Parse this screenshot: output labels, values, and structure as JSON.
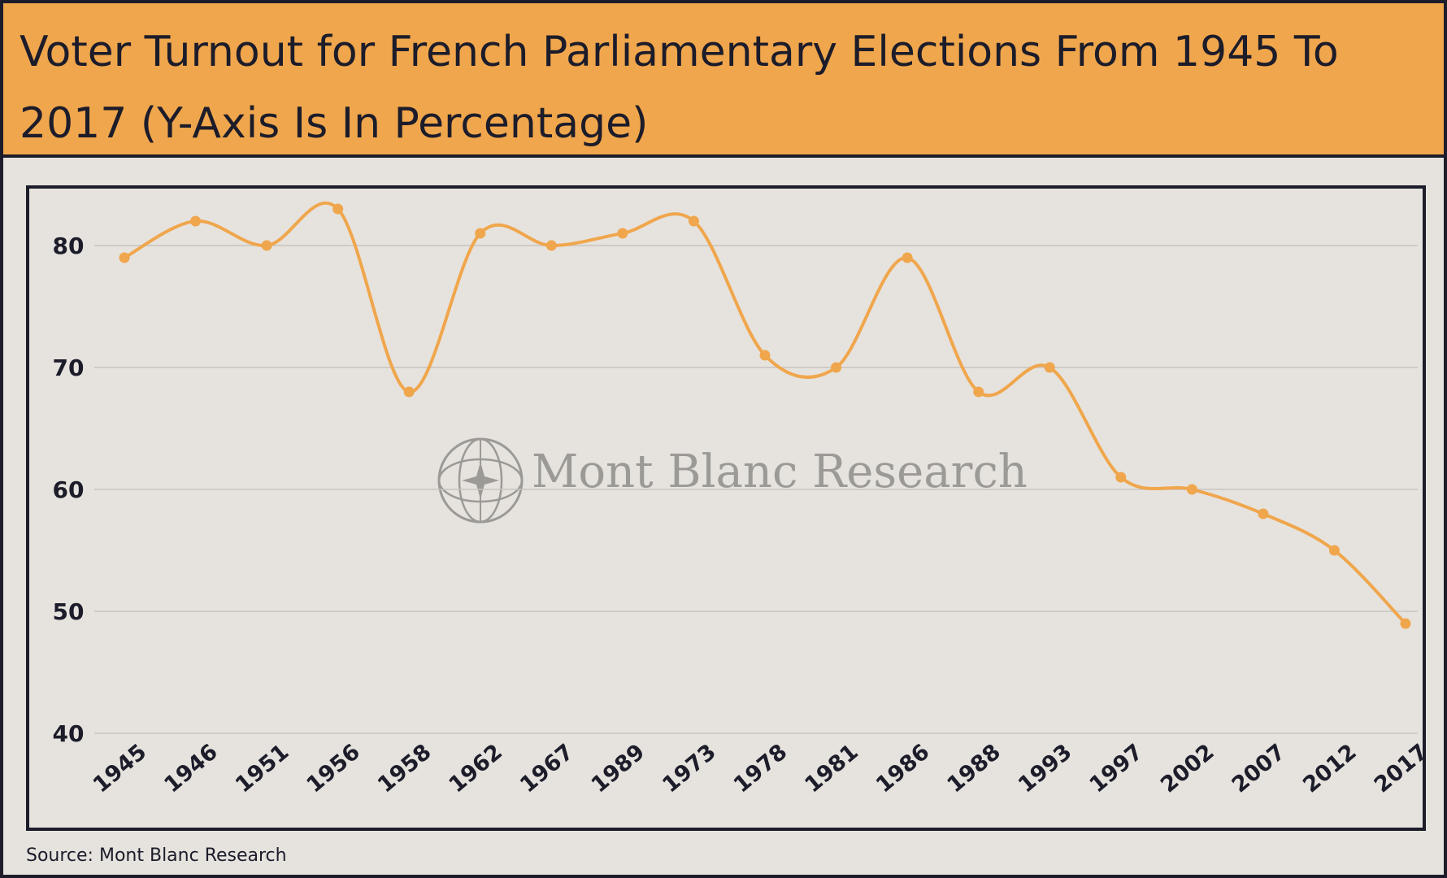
{
  "title": "Voter Turnout for French Parliamentary Elections From 1945 To 2017 (Y-Axis Is In Percentage)",
  "source": "Source: Mont Blanc Research",
  "watermark": "Mont Blanc Research",
  "watermark_icon": "compass-star-globe-icon",
  "colors": {
    "accent": "#f0a64c",
    "ink": "#1c1c2a",
    "background": "#e6e3de",
    "grid": "#c7c4bf"
  },
  "chart_data": {
    "type": "line",
    "title": "Voter Turnout for French Parliamentary Elections From 1945 To 2017 (Y-Axis Is In Percentage)",
    "xlabel": "",
    "ylabel": "",
    "categories": [
      "1945",
      "1946",
      "1951",
      "1956",
      "1958",
      "1962",
      "1967",
      "1989",
      "1973",
      "1978",
      "1981",
      "1986",
      "1988",
      "1993",
      "1997",
      "2002",
      "2007",
      "2012",
      "2017"
    ],
    "series": [
      {
        "name": "Voter Turnout",
        "values": [
          79,
          82,
          80,
          83,
          68,
          81,
          80,
          81,
          82,
          71,
          70,
          79,
          68,
          70,
          61,
          60,
          58,
          55,
          49
        ]
      }
    ],
    "ylim": [
      40,
      83
    ],
    "yticks": [
      40,
      50,
      60,
      70,
      80
    ],
    "grid": true,
    "legend": "none"
  }
}
